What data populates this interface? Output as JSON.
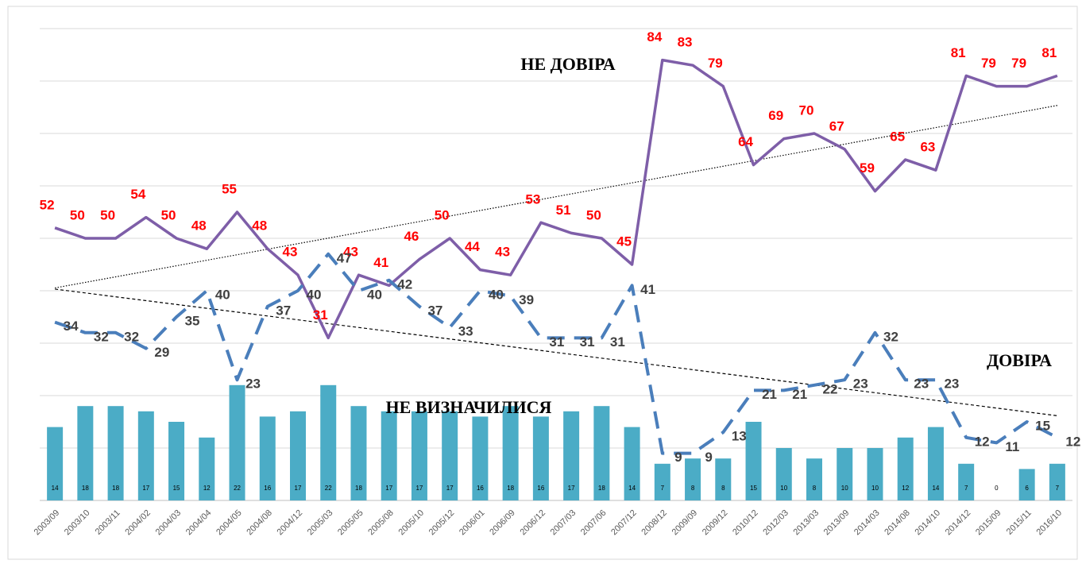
{
  "chart_data": {
    "type": "combo",
    "categories": [
      "2003/09",
      "2003/10",
      "2003/11",
      "2004/02",
      "2004/03",
      "2004/04",
      "2004/05",
      "2004/08",
      "2004/12",
      "2005/03",
      "2005/05",
      "2005/08",
      "2005/10",
      "2005/12",
      "2006/01",
      "2006/09",
      "2006/12",
      "2007/03",
      "2007/06",
      "2007/12",
      "2008/12",
      "2009/09",
      "2009/12",
      "2010/12",
      "2012/03",
      "2013/03",
      "2013/09",
      "2014/03",
      "2014/08",
      "2014/10",
      "2014/12",
      "2015/09",
      "2015/11",
      "2016/10"
    ],
    "series": [
      {
        "name": "НЕ ДОВІРА",
        "kind": "line",
        "color": "#7e5ea8",
        "label_color": "#ff0000",
        "trendline": "dotted",
        "values": [
          52,
          50,
          50,
          54,
          50,
          48,
          55,
          48,
          43,
          31,
          43,
          41,
          46,
          50,
          44,
          43,
          53,
          51,
          50,
          45,
          84,
          83,
          79,
          64,
          69,
          70,
          67,
          59,
          65,
          63,
          81,
          79,
          79,
          81
        ]
      },
      {
        "name": "ДОВІРА",
        "kind": "dashed-line",
        "color": "#4a7ebb",
        "label_color": "#404040",
        "trendline": "dashed",
        "values": [
          34,
          32,
          32,
          29,
          35,
          40,
          23,
          37,
          40,
          47,
          40,
          42,
          37,
          33,
          40,
          39,
          31,
          31,
          31,
          41,
          9,
          9,
          13,
          21,
          21,
          22,
          23,
          32,
          23,
          23,
          12,
          11,
          15,
          12
        ]
      },
      {
        "name": "НЕ ВИЗНАЧИЛИСЯ",
        "kind": "bar",
        "color": "#4bacc6",
        "label_color": "#000000",
        "values": [
          14,
          18,
          18,
          17,
          15,
          12,
          22,
          16,
          17,
          22,
          18,
          17,
          17,
          17,
          16,
          18,
          16,
          17,
          18,
          14,
          7,
          8,
          8,
          15,
          10,
          8,
          10,
          10,
          12,
          14,
          7,
          0,
          6,
          7
        ]
      }
    ],
    "ylim": [
      0,
      90
    ],
    "yticks": [
      0,
      10,
      20,
      30,
      40,
      50,
      60,
      70,
      80,
      90
    ],
    "grid": true
  }
}
